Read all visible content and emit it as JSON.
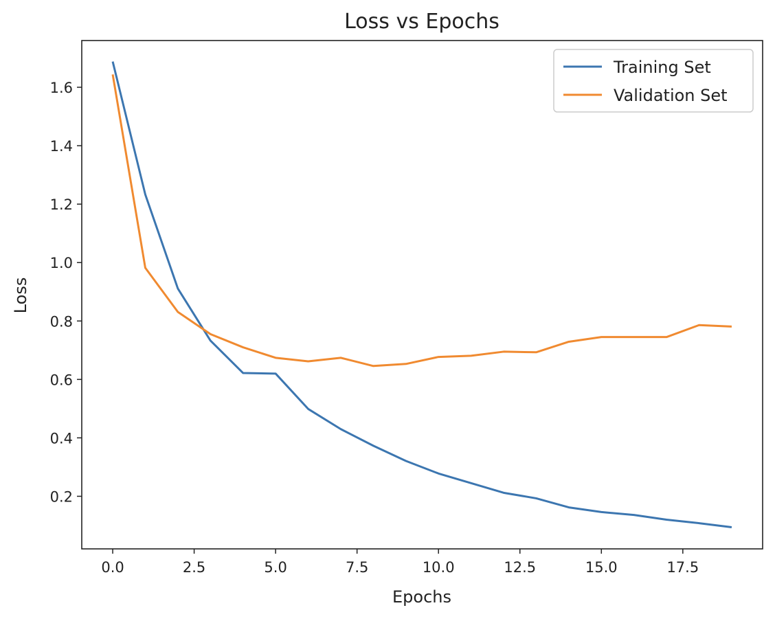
{
  "chart_data": {
    "type": "line",
    "title": "Loss vs Epochs",
    "xlabel": "Epochs",
    "ylabel": "Loss",
    "xlim": [
      -0.95,
      19.95
    ],
    "ylim": [
      0.02,
      1.76
    ],
    "xticks": [
      0.0,
      2.5,
      5.0,
      7.5,
      10.0,
      12.5,
      15.0,
      17.5
    ],
    "xtick_labels": [
      "0.0",
      "2.5",
      "5.0",
      "7.5",
      "10.0",
      "12.5",
      "15.0",
      "17.5"
    ],
    "yticks": [
      0.2,
      0.4,
      0.6,
      0.8,
      1.0,
      1.2,
      1.4,
      1.6
    ],
    "ytick_labels": [
      "0.2",
      "0.4",
      "0.6",
      "0.8",
      "1.0",
      "1.2",
      "1.4",
      "1.6"
    ],
    "grid": false,
    "legend_position": "top-right",
    "x": [
      0,
      1,
      2,
      3,
      4,
      5,
      6,
      7,
      8,
      9,
      10,
      11,
      12,
      13,
      14,
      15,
      16,
      17,
      18,
      19
    ],
    "series": [
      {
        "name": "Training Set",
        "color": "#3c76b0",
        "values": [
          1.688,
          1.233,
          0.911,
          0.733,
          0.622,
          0.62,
          0.499,
          0.43,
          0.373,
          0.321,
          0.278,
          0.245,
          0.212,
          0.193,
          0.162,
          0.146,
          0.136,
          0.12,
          0.108,
          0.094
        ]
      },
      {
        "name": "Validation Set",
        "color": "#f08a30",
        "values": [
          1.644,
          0.982,
          0.831,
          0.755,
          0.71,
          0.674,
          0.662,
          0.674,
          0.646,
          0.653,
          0.677,
          0.681,
          0.695,
          0.693,
          0.729,
          0.745,
          0.745,
          0.745,
          0.786,
          0.781
        ]
      }
    ]
  }
}
